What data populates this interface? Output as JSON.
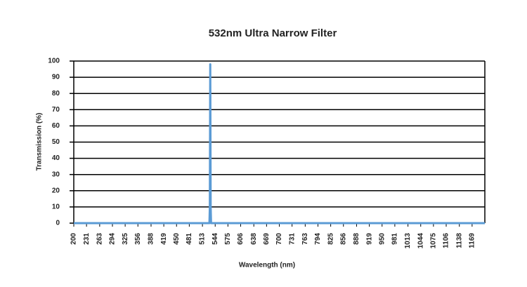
{
  "chart_data": {
    "type": "line",
    "title": "532nm Ultra Narrow Filter",
    "xlabel": "Wavelength (nm)",
    "ylabel": "Transmission (%)",
    "series": [
      {
        "name": "Transmission",
        "color": "#5b9bd5",
        "x": [
          200,
          530,
          531,
          532,
          533,
          534,
          1200
        ],
        "values": [
          0,
          0,
          10,
          98,
          10,
          0,
          0
        ]
      }
    ],
    "xlim": [
      200,
      1200
    ],
    "xticks": [
      200,
      231,
      263,
      294,
      325,
      356,
      388,
      419,
      450,
      481,
      513,
      544,
      575,
      606,
      638,
      669,
      700,
      731,
      763,
      794,
      825,
      856,
      888,
      919,
      950,
      981,
      1013,
      1044,
      1075,
      1106,
      1138,
      1169
    ],
    "ylim": [
      0,
      100
    ],
    "yticks": [
      0,
      10,
      20,
      30,
      40,
      50,
      60,
      70,
      80,
      90,
      100
    ],
    "grid": true
  }
}
